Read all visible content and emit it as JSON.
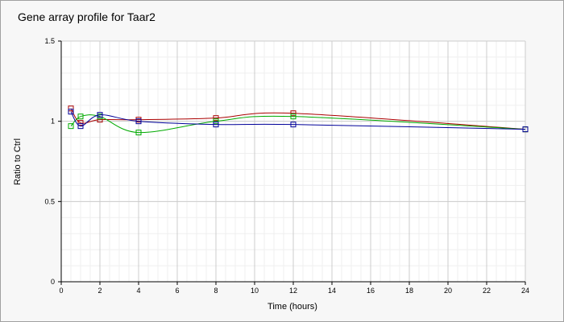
{
  "chart_data": {
    "type": "line",
    "title": "Gene array profile for Taar2",
    "xlabel": "Time (hours)",
    "ylabel": "Ratio to Ctrl",
    "xlim": [
      0,
      24
    ],
    "ylim": [
      0,
      1.5
    ],
    "x_ticks": [
      0,
      2,
      4,
      6,
      8,
      10,
      12,
      14,
      16,
      18,
      20,
      22,
      24
    ],
    "y_ticks": [
      0,
      0.5,
      1,
      1.5
    ],
    "x_tick_labels": [
      "0",
      "2",
      "4",
      "6",
      "8",
      "10",
      "12",
      "14",
      "16",
      "18",
      "20",
      "22",
      "24"
    ],
    "y_tick_labels": [
      "0",
      "0.5",
      "1",
      "1.5"
    ],
    "grid": true,
    "marker": "square",
    "series": [
      {
        "color": "#aa0000",
        "x": [
          0.5,
          1,
          2,
          4,
          8,
          12,
          24
        ],
        "y": [
          1.08,
          0.99,
          1.01,
          1.01,
          1.02,
          1.05,
          0.95
        ]
      },
      {
        "color": "#00aa00",
        "x": [
          0.5,
          1,
          2,
          4,
          8,
          12,
          24
        ],
        "y": [
          0.97,
          1.03,
          1.03,
          0.93,
          1.0,
          1.03,
          0.95
        ]
      },
      {
        "color": "#000099",
        "x": [
          0.5,
          1,
          2,
          4,
          8,
          12,
          24
        ],
        "y": [
          1.06,
          0.97,
          1.04,
          1.0,
          0.98,
          0.98,
          0.95
        ]
      }
    ]
  }
}
